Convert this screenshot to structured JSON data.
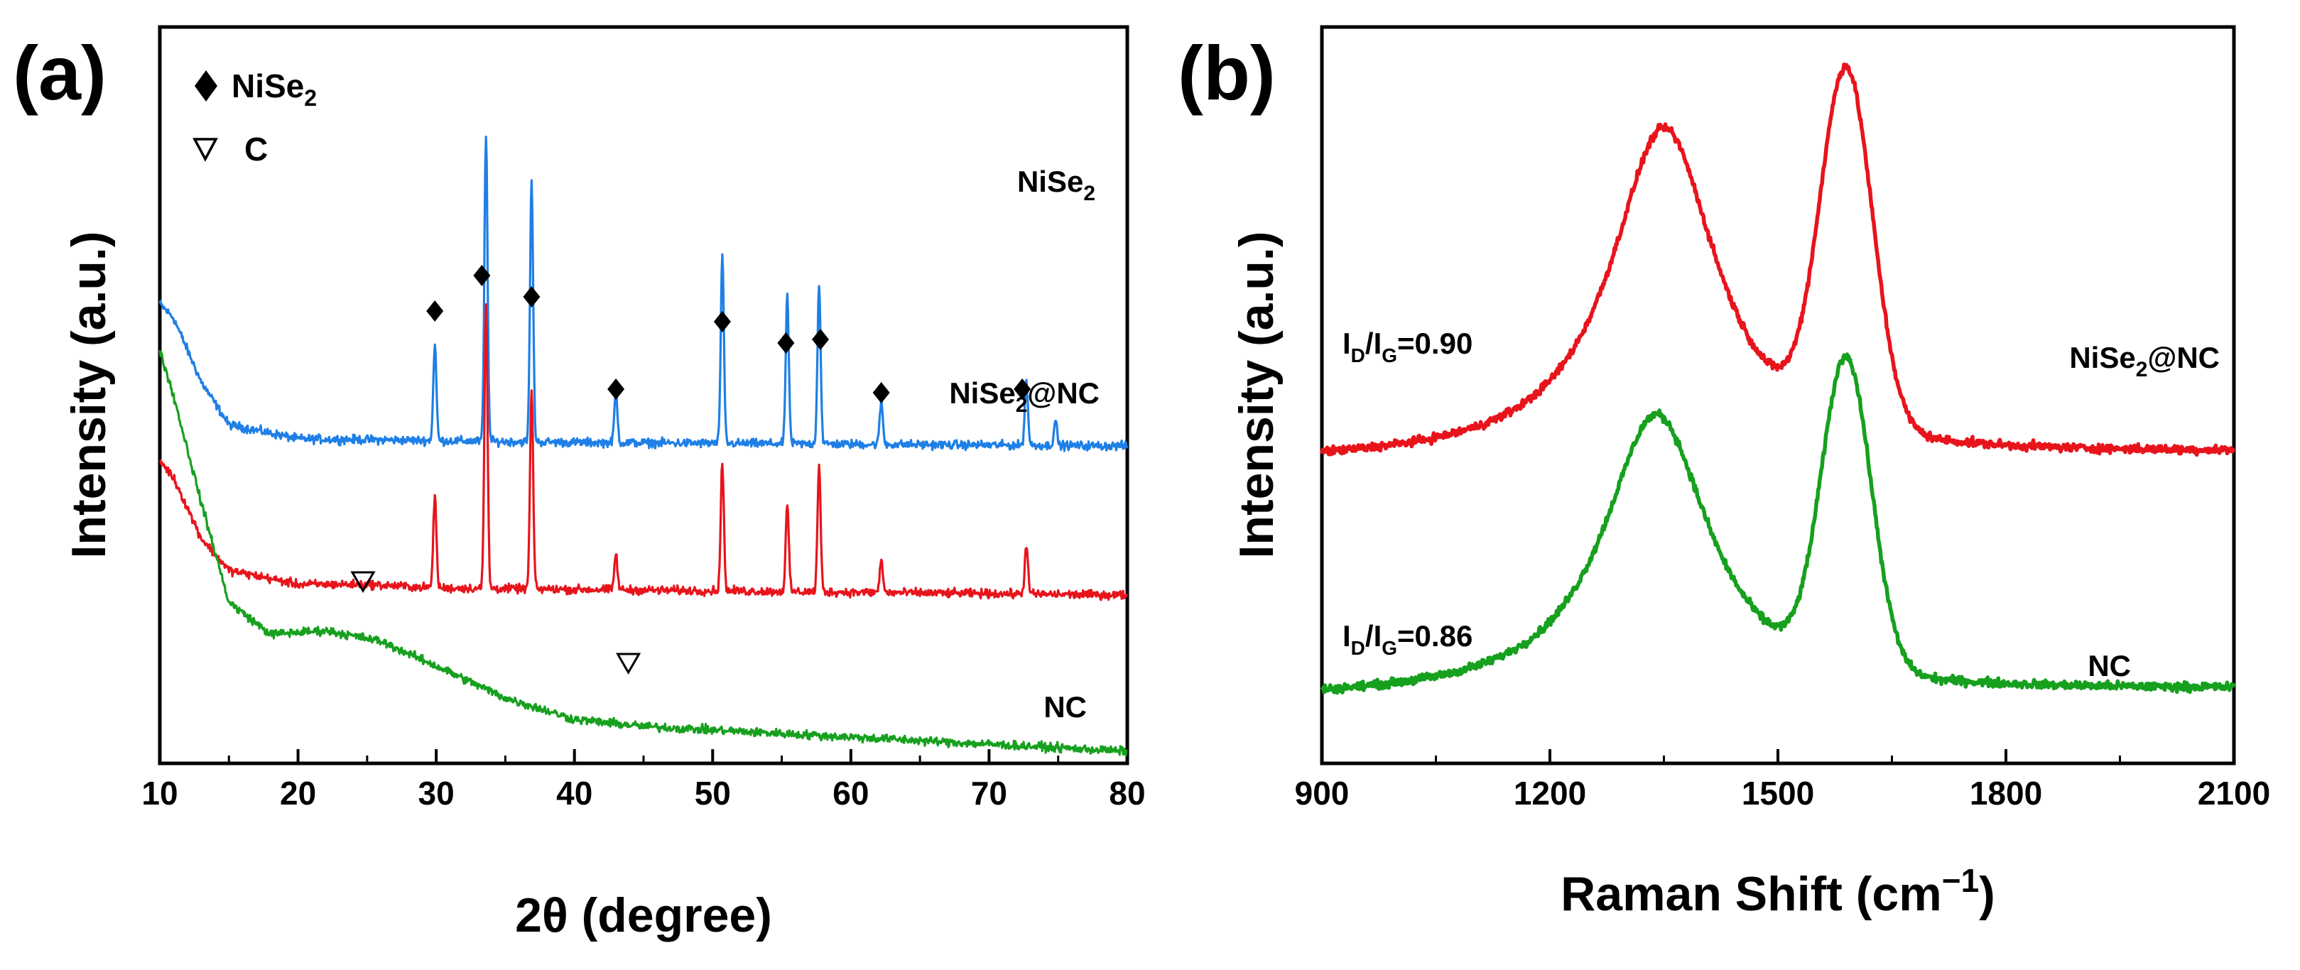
{
  "chart_data": [
    {
      "panel_label": "(a)",
      "type": "line",
      "xlabel": "2θ (degree)",
      "ylabel": "Intensity (a.u.)",
      "xlim": [
        10,
        80
      ],
      "x_ticks": [
        10,
        20,
        30,
        40,
        50,
        60,
        70,
        80
      ],
      "y_ticks_shown": false,
      "grid": false,
      "legend": {
        "placement": "top-left",
        "entries": [
          {
            "marker": "filled-diamond",
            "label": "NiSe",
            "sub": "2"
          },
          {
            "marker": "open-down-triangle",
            "label": "C"
          }
        ]
      },
      "series": [
        {
          "name": "NiSe2",
          "label": {
            "main": "NiSe",
            "sub": "2"
          },
          "color": "#1e7fe6",
          "baseline": 0.86,
          "background": [
            [
              10,
              0.4
            ],
            [
              11,
              0.36
            ],
            [
              13,
              0.18
            ],
            [
              15,
              0.06
            ],
            [
              20,
              0.02
            ],
            [
              40,
              0.01
            ],
            [
              80,
              0.0
            ]
          ],
          "peaks": [
            {
              "x": 29.9,
              "h": 0.27
            },
            {
              "x": 33.6,
              "h": 0.86
            },
            {
              "x": 36.9,
              "h": 0.73
            },
            {
              "x": 43.0,
              "h": 0.14
            },
            {
              "x": 50.7,
              "h": 0.52
            },
            {
              "x": 55.4,
              "h": 0.41
            },
            {
              "x": 57.7,
              "h": 0.45
            },
            {
              "x": 62.2,
              "h": 0.12
            },
            {
              "x": 72.7,
              "h": 0.18
            },
            {
              "x": 74.8,
              "h": 0.07
            }
          ]
        },
        {
          "name": "NiSe2@NC",
          "label": {
            "main": "NiSe",
            "sub": "2",
            "after": "@NC"
          },
          "color": "#e8141c",
          "baseline": 0.44,
          "background": [
            [
              10,
              0.38
            ],
            [
              11,
              0.33
            ],
            [
              13,
              0.16
            ],
            [
              15,
              0.07
            ],
            [
              20,
              0.03
            ],
            [
              25,
              0.03
            ],
            [
              30,
              0.02
            ],
            [
              80,
              0.0
            ]
          ],
          "peaks": [
            {
              "x": 29.9,
              "h": 0.26
            },
            {
              "x": 33.6,
              "h": 0.8
            },
            {
              "x": 36.9,
              "h": 0.56
            },
            {
              "x": 43.0,
              "h": 0.1
            },
            {
              "x": 50.7,
              "h": 0.36
            },
            {
              "x": 55.4,
              "h": 0.24
            },
            {
              "x": 57.7,
              "h": 0.35
            },
            {
              "x": 62.2,
              "h": 0.09
            },
            {
              "x": 72.7,
              "h": 0.14
            }
          ],
          "markers": [
            {
              "x": 29.9,
              "y": 0.8
            },
            {
              "x": 33.3,
              "y": 0.9
            },
            {
              "x": 36.9,
              "y": 0.84
            },
            {
              "x": 43.0,
              "y": 0.58
            },
            {
              "x": 50.7,
              "y": 0.77
            },
            {
              "x": 55.3,
              "y": 0.71
            },
            {
              "x": 57.8,
              "y": 0.72
            },
            {
              "x": 62.2,
              "y": 0.57
            },
            {
              "x": 72.4,
              "y": 0.58
            }
          ]
        },
        {
          "name": "NC",
          "label": {
            "main": "NC"
          },
          "color": "#16a01e",
          "baseline": 0.0,
          "background": [
            [
              10,
              1.13
            ],
            [
              11,
              1.0
            ],
            [
              12,
              0.85
            ],
            [
              13,
              0.7
            ],
            [
              15,
              0.42
            ],
            [
              18,
              0.33
            ],
            [
              22,
              0.34
            ],
            [
              26,
              0.31
            ],
            [
              30,
              0.24
            ],
            [
              35,
              0.15
            ],
            [
              40,
              0.09
            ],
            [
              45,
              0.07
            ],
            [
              50,
              0.06
            ],
            [
              60,
              0.04
            ],
            [
              70,
              0.02
            ],
            [
              80,
              0.0
            ]
          ],
          "peaks": [],
          "markers": [
            {
              "x": 24.7,
              "y": 0.48
            },
            {
              "x": 43.9,
              "y": 0.25
            }
          ]
        }
      ]
    },
    {
      "panel_label": "(b)",
      "type": "line",
      "xlabel": "Raman Shift (cm",
      "xlabel_sup": "−1",
      "xlabel_end": ")",
      "ylabel": "Intensity (a.u.)",
      "xlim": [
        900,
        2100
      ],
      "x_ticks": [
        900,
        1200,
        1500,
        1800,
        2100
      ],
      "y_ticks_shown": false,
      "grid": false,
      "series": [
        {
          "name": "NiSe2@NC",
          "label": {
            "main": "NiSe",
            "sub": "2",
            "after": "@NC"
          },
          "ratio_text": "=0.90",
          "color": "#e8141c",
          "baseline": 0.52,
          "slope": 0.02,
          "D_band": {
            "x": 1350,
            "h": 0.73,
            "w": 85
          },
          "G_band": {
            "x": 1590,
            "h": 0.78,
            "w": 42
          }
        },
        {
          "name": "NC",
          "label": {
            "main": "NC"
          },
          "ratio_text": "=0.86",
          "color": "#16a01e",
          "baseline": 0.0,
          "slope": 0.02,
          "D_band": {
            "x": 1340,
            "h": 0.62,
            "w": 85
          },
          "G_band": {
            "x": 1590,
            "h": 0.68,
            "w": 40
          }
        }
      ]
    }
  ]
}
